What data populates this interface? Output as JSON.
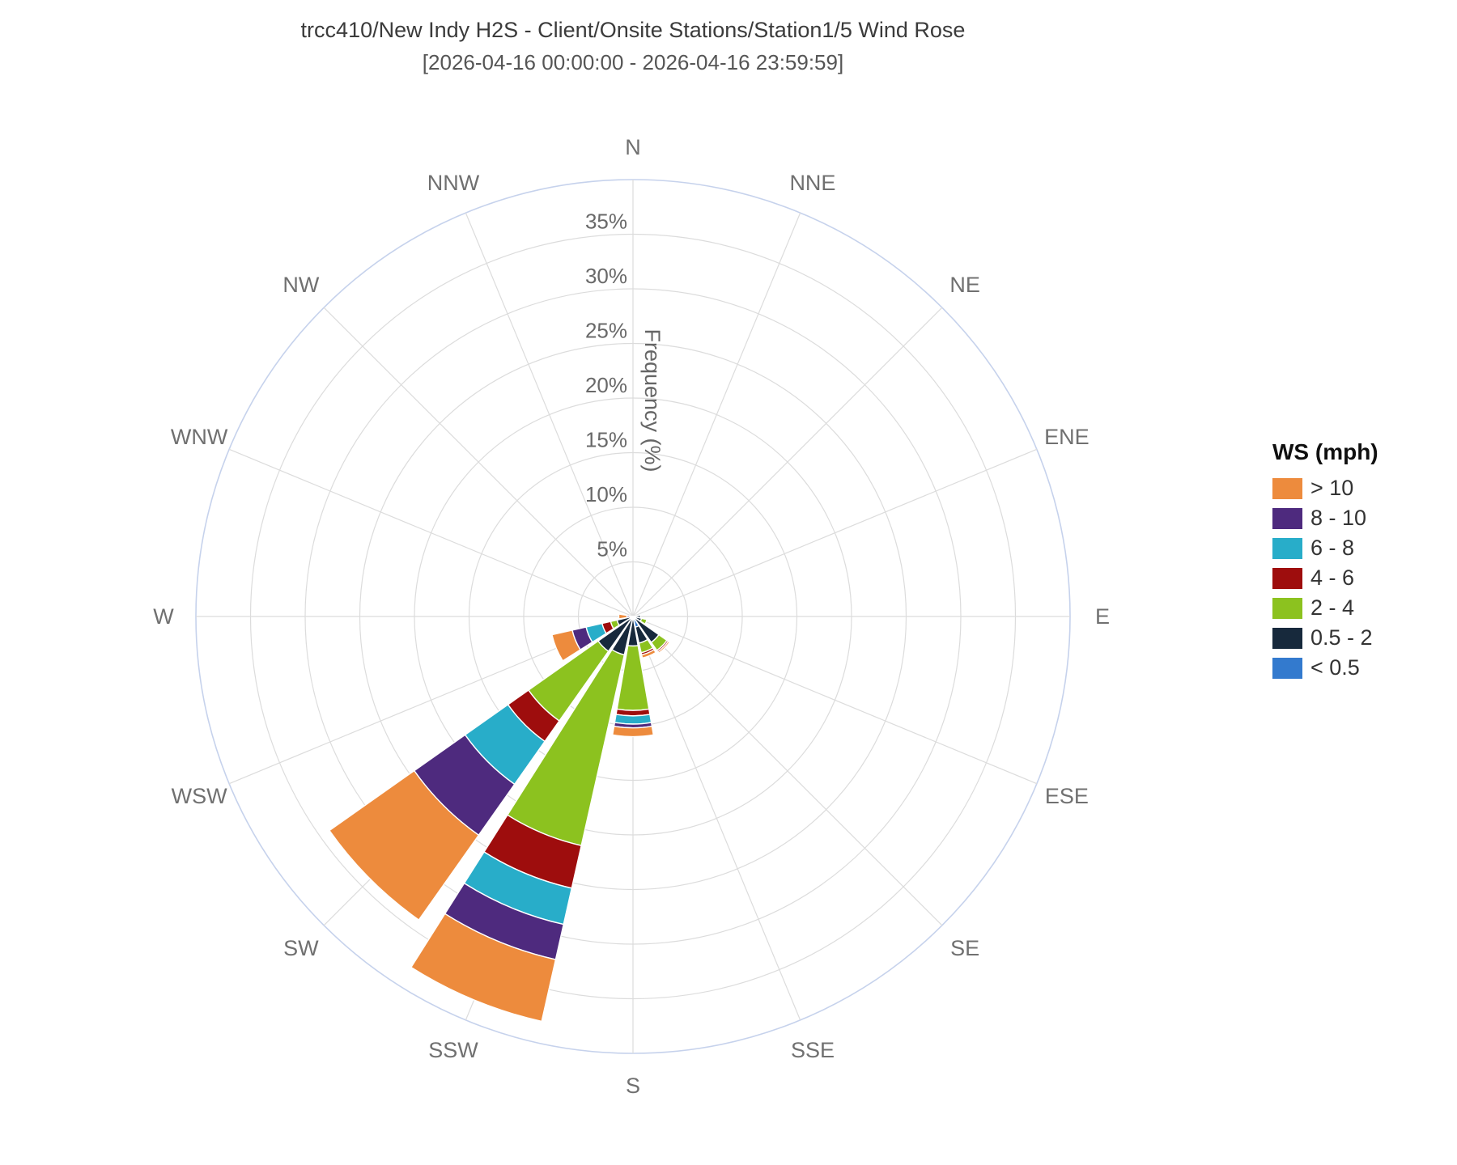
{
  "header": {
    "title": "trcc410/New Indy H2S - Client/Onsite Stations/Station1/5 Wind Rose",
    "subtitle": "[2026-04-16 00:00:00 - 2026-04-16 23:59:59]"
  },
  "legend": {
    "title": "WS (mph)"
  },
  "chart_data": {
    "type": "bar",
    "subtype": "wind-rose-stacked-polar",
    "title": "trcc410/New Indy H2S - Client/Onsite Stations/Station1/5 Wind Rose",
    "radial_axis": {
      "label": "Frequency (%)",
      "tick_values": [
        5,
        10,
        15,
        20,
        25,
        30,
        35
      ],
      "tick_labels": [
        "5%",
        "10%",
        "15%",
        "20%",
        "25%",
        "30%",
        "35%"
      ],
      "rmax": 40,
      "ring_step": 5,
      "grid": true
    },
    "directions": [
      "N",
      "NNE",
      "NE",
      "ENE",
      "E",
      "ESE",
      "SE",
      "SSE",
      "S",
      "SSW",
      "SW",
      "WSW",
      "W",
      "WNW",
      "NW",
      "NNW"
    ],
    "legend_position": "right",
    "series": [
      {
        "name": "< 0.5",
        "color": "#337ACE",
        "values": [
          0,
          0,
          0,
          0,
          0,
          0,
          0,
          1.0,
          0,
          0,
          0,
          0,
          0,
          0,
          0,
          0
        ]
      },
      {
        "name": "0.5 - 2",
        "color": "#17293C",
        "values": [
          0,
          0,
          0,
          0,
          0.7,
          0.8,
          2.9,
          1.5,
          2.7,
          3.6,
          3.9,
          1.5,
          0.3,
          0,
          0,
          0
        ]
      },
      {
        "name": "2 - 4",
        "color": "#8CC21F",
        "values": [
          0,
          0,
          0,
          0,
          0,
          0.5,
          0.9,
          0.9,
          5.9,
          17.9,
          7.8,
          0.6,
          0,
          0,
          0,
          0
        ]
      },
      {
        "name": "4 - 6",
        "color": "#9E0D0D",
        "values": [
          0,
          0,
          0,
          0,
          0,
          0,
          0.15,
          0.2,
          0.5,
          4.0,
          2.3,
          0.8,
          0,
          0,
          0,
          0
        ]
      },
      {
        "name": "6 - 8",
        "color": "#28ADC9",
        "values": [
          0,
          0,
          0,
          0,
          0,
          0,
          0,
          0,
          0.75,
          3.4,
          4.8,
          1.5,
          0,
          0,
          0,
          0
        ]
      },
      {
        "name": "8 - 10",
        "color": "#4E2A7E",
        "values": [
          0,
          0,
          0,
          0,
          0,
          0,
          0,
          0,
          0.35,
          3.3,
          5.7,
          1.3,
          0.25,
          0,
          0,
          0
        ]
      },
      {
        "name": "> 10",
        "color": "#ED8B3D",
        "values": [
          0,
          0,
          0,
          0,
          0,
          0,
          0.15,
          0.3,
          0.8,
          5.8,
          9.5,
          1.9,
          0.75,
          0,
          0,
          0
        ]
      }
    ],
    "colors": {
      "grid_line": "#dcdcdc",
      "outer_ring": "#c6d2ec",
      "tick_text": "#696969",
      "direction_text": "#707070",
      "axis_title_text": "#666666"
    }
  }
}
